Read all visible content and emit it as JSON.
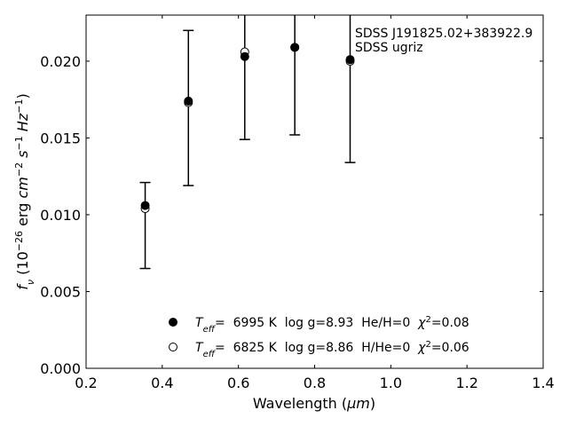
{
  "chart_data": {
    "type": "scatter",
    "title": "",
    "xlabel_main": "Wavelength (",
    "xlabel_unit": "μm",
    "xlabel_close": ")",
    "ylabel_sym": "f",
    "ylabel_sub": "ν",
    "ylabel_open": " (10",
    "ylabel_exp1": "−26",
    "ylabel_mid": " erg ",
    "ylabel_cm": "cm",
    "ylabel_exp2": "−2",
    "ylabel_s": " s",
    "ylabel_exp3": "−1",
    "ylabel_hz": " Hz",
    "ylabel_exp4": "−1",
    "ylabel_close": ")",
    "xlim": [
      0.2,
      1.4
    ],
    "ylim": [
      0.0,
      0.023
    ],
    "xticks": [
      0.2,
      0.4,
      0.6,
      0.8,
      1.0,
      1.2,
      1.4
    ],
    "xtick_labels": [
      "0.2",
      "0.4",
      "0.6",
      "0.8",
      "1.0",
      "1.2",
      "1.4"
    ],
    "yticks": [
      0.0,
      0.005,
      0.01,
      0.015,
      0.02
    ],
    "ytick_labels": [
      "0.000",
      "0.005",
      "0.010",
      "0.015",
      "0.020"
    ],
    "grid": false,
    "annotations": [
      "SDSS J191825.02+383922.9",
      "SDSS ugriz"
    ],
    "observed": {
      "x": [
        0.3551,
        0.4686,
        0.6166,
        0.748,
        0.8932
      ],
      "y": [
        0.0106,
        0.0174,
        0.0203,
        0.0209,
        0.0201
      ],
      "yerr_low": [
        0.0065,
        0.0119,
        0.0149,
        0.0152,
        0.0134
      ],
      "yerr_high": [
        0.0121,
        0.022,
        0.0235,
        0.0235,
        0.0235
      ]
    },
    "series": [
      {
        "marker": "filled-circle",
        "x": [
          0.3551,
          0.4686,
          0.6166,
          0.748,
          0.8932
        ],
        "y": [
          0.0106,
          0.0174,
          0.0203,
          0.0209,
          0.0201
        ]
      },
      {
        "marker": "open-circle",
        "x": [
          0.3551,
          0.4686,
          0.6166,
          0.748,
          0.8932
        ],
        "y": [
          0.0104,
          0.0173,
          0.0206,
          0.0209,
          0.02
        ]
      }
    ],
    "legend": {
      "placement": "lower-center",
      "entries": [
        {
          "teff_T": "T",
          "teff_sub": "eff",
          "text": "=  6995 K  log g=8.93  He/H=0  ",
          "chi": "χ",
          "chi_exp": "2",
          "chi_val": "=0.08"
        },
        {
          "teff_T": "T",
          "teff_sub": "eff",
          "text": "=  6825 K  log g=8.86  H/He=0  ",
          "chi": "χ",
          "chi_exp": "2",
          "chi_val": "=0.06"
        }
      ]
    }
  }
}
